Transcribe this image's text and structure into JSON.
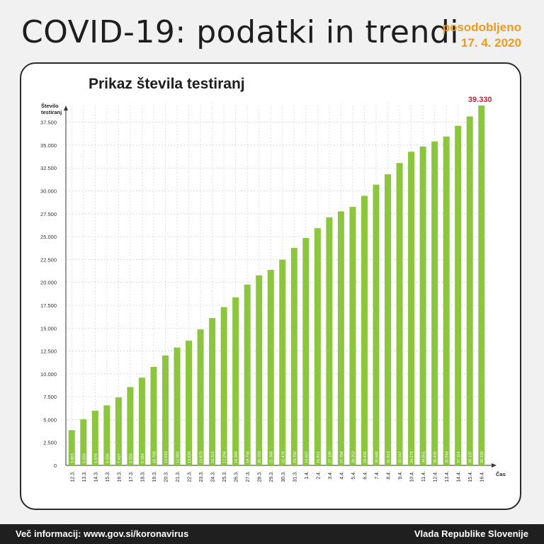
{
  "header": {
    "title": "COVID-19: podatki in trendi",
    "updated_label": "posodobljeno",
    "updated_date": "17. 4. 2020"
  },
  "footer": {
    "info": "Več informacij: www.gov.si/koronavirus",
    "org": "Vlada Republike Slovenije"
  },
  "colors": {
    "bar": "#8cc63f",
    "highlight": "#d0202e",
    "accent": "#f39a1e"
  },
  "chart_data": {
    "type": "bar",
    "title": "Prikaz števila testiranj",
    "ylabel": "Število testiranj",
    "xlabel": "Čas",
    "ylim": [
      0,
      39330
    ],
    "yticks": [
      0,
      2500,
      5000,
      7500,
      10000,
      12500,
      15000,
      17500,
      20000,
      22500,
      25000,
      27500,
      30000,
      32500,
      35000,
      37500
    ],
    "ytick_labels": [
      "0",
      "2.500",
      "5.000",
      "7.500",
      "10.000",
      "12.500",
      "15.000",
      "17.500",
      "20.000",
      "22.500",
      "25.000",
      "27.500",
      "30.000",
      "32.500",
      "35.000",
      "37.500"
    ],
    "grid": true,
    "categories": [
      "12.3.",
      "13.3.",
      "14.3.",
      "15.3.",
      "16.3.",
      "17.3.",
      "18.3.",
      "19.3.",
      "20.3.",
      "21.3.",
      "22.3.",
      "23.3.",
      "24.3.",
      "25.3.",
      "26.3.",
      "27.3.",
      "28.3.",
      "29.3.",
      "30.3.",
      "31.3.",
      "1.4.",
      "2.4.",
      "3.4.",
      "4.4.",
      "5.4.",
      "6.4.",
      "7.4.",
      "8.4.",
      "9.4.",
      "10.4.",
      "11.4.",
      "12.4.",
      "13.4.",
      "14.4.",
      "15.4.",
      "16.4."
    ],
    "values": [
      3853,
      5050,
      5976,
      6556,
      7437,
      8558,
      9584,
      10768,
      12010,
      12882,
      13633,
      14870,
      16113,
      17294,
      18369,
      19756,
      20763,
      21368,
      22476,
      23762,
      24857,
      25921,
      27109,
      27764,
      28253,
      29455,
      30688,
      31813,
      33047,
      34279,
      34851,
      35405,
      35948,
      37114,
      38137,
      39330
    ],
    "value_labels": [
      "3.853",
      "5.050",
      "5.976",
      "6.556",
      "7.437",
      "8.558",
      "9.584",
      "10.768",
      "12.010",
      "12.882",
      "13.633",
      "14.870",
      "16.113",
      "17.294",
      "18.369",
      "19.756",
      "20.763",
      "21.368",
      "22.476",
      "23.762",
      "24.857",
      "25.921",
      "27.109",
      "27.764",
      "28.253",
      "29.455",
      "30.688",
      "31.813",
      "33.047",
      "34.279",
      "34.851",
      "35.405",
      "35.948",
      "37.114",
      "38.137",
      "39.330"
    ],
    "highlight_label": "39.330"
  }
}
